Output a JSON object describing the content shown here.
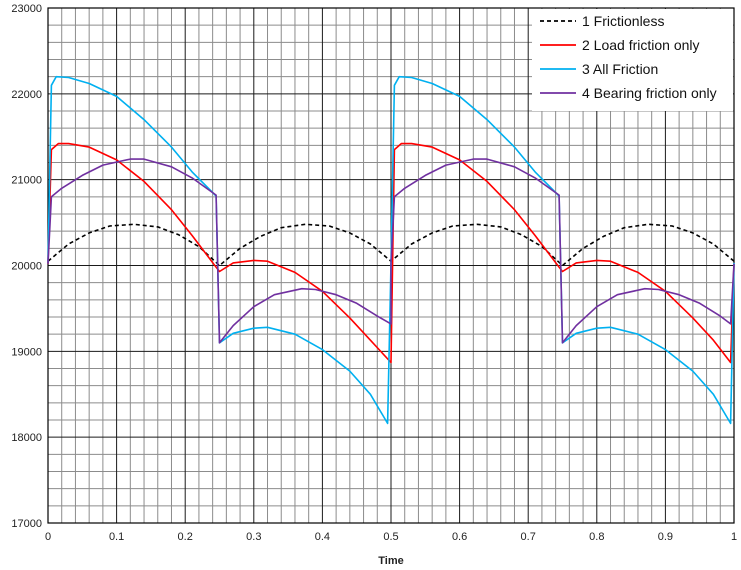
{
  "chart_data": {
    "type": "line",
    "title": "",
    "xlabel": "Time",
    "ylabel": "",
    "xlim": [
      0,
      1
    ],
    "ylim": [
      17000,
      23000
    ],
    "xticks": [
      "0",
      "0.1",
      "0.2",
      "0.3",
      "0.4",
      "0.5",
      "0.6",
      "0.7",
      "0.8",
      "0.9",
      "1"
    ],
    "yticks": [
      "17000",
      "18000",
      "19000",
      "20000",
      "21000",
      "22000",
      "23000"
    ],
    "grid": true,
    "legend_position": "top-right",
    "series": [
      {
        "name": "1 Frictionless",
        "color": "#000000",
        "dashed": true,
        "points": [
          [
            0,
            20050
          ],
          [
            0.03,
            20250
          ],
          [
            0.06,
            20380
          ],
          [
            0.09,
            20460
          ],
          [
            0.125,
            20480
          ],
          [
            0.16,
            20450
          ],
          [
            0.19,
            20360
          ],
          [
            0.22,
            20220
          ],
          [
            0.25,
            20000
          ],
          [
            0.28,
            20200
          ],
          [
            0.31,
            20340
          ],
          [
            0.34,
            20440
          ],
          [
            0.375,
            20480
          ],
          [
            0.41,
            20460
          ],
          [
            0.44,
            20380
          ],
          [
            0.47,
            20250
          ],
          [
            0.5,
            20050
          ],
          [
            0.53,
            20250
          ],
          [
            0.56,
            20380
          ],
          [
            0.59,
            20460
          ],
          [
            0.625,
            20480
          ],
          [
            0.66,
            20450
          ],
          [
            0.69,
            20360
          ],
          [
            0.72,
            20220
          ],
          [
            0.75,
            20000
          ],
          [
            0.78,
            20200
          ],
          [
            0.81,
            20340
          ],
          [
            0.84,
            20440
          ],
          [
            0.875,
            20480
          ],
          [
            0.91,
            20460
          ],
          [
            0.94,
            20380
          ],
          [
            0.97,
            20250
          ],
          [
            1.0,
            20050
          ]
        ]
      },
      {
        "name": "2 Load friction only",
        "color": "#ff0000",
        "dashed": false,
        "points": [
          [
            0,
            20020
          ],
          [
            0.005,
            21350
          ],
          [
            0.015,
            21420
          ],
          [
            0.03,
            21420
          ],
          [
            0.06,
            21380
          ],
          [
            0.1,
            21230
          ],
          [
            0.14,
            20980
          ],
          [
            0.18,
            20650
          ],
          [
            0.21,
            20350
          ],
          [
            0.245,
            19980
          ],
          [
            0.25,
            19930
          ],
          [
            0.27,
            20030
          ],
          [
            0.3,
            20060
          ],
          [
            0.32,
            20050
          ],
          [
            0.36,
            19920
          ],
          [
            0.4,
            19700
          ],
          [
            0.44,
            19390
          ],
          [
            0.47,
            19130
          ],
          [
            0.5,
            18870
          ],
          [
            0.505,
            21350
          ],
          [
            0.515,
            21420
          ],
          [
            0.53,
            21420
          ],
          [
            0.56,
            21380
          ],
          [
            0.6,
            21230
          ],
          [
            0.64,
            20980
          ],
          [
            0.68,
            20650
          ],
          [
            0.71,
            20350
          ],
          [
            0.745,
            19980
          ],
          [
            0.75,
            19930
          ],
          [
            0.77,
            20030
          ],
          [
            0.8,
            20060
          ],
          [
            0.82,
            20050
          ],
          [
            0.86,
            19920
          ],
          [
            0.9,
            19700
          ],
          [
            0.94,
            19390
          ],
          [
            0.97,
            19130
          ],
          [
            0.995,
            18870
          ],
          [
            1.0,
            20020
          ]
        ]
      },
      {
        "name": "3 All Friction",
        "color": "#00b0f0",
        "dashed": false,
        "points": [
          [
            0,
            20030
          ],
          [
            0.005,
            22100
          ],
          [
            0.012,
            22200
          ],
          [
            0.03,
            22190
          ],
          [
            0.06,
            22120
          ],
          [
            0.1,
            21970
          ],
          [
            0.14,
            21700
          ],
          [
            0.18,
            21380
          ],
          [
            0.21,
            21090
          ],
          [
            0.245,
            20810
          ],
          [
            0.25,
            19100
          ],
          [
            0.27,
            19210
          ],
          [
            0.3,
            19270
          ],
          [
            0.32,
            19280
          ],
          [
            0.36,
            19200
          ],
          [
            0.4,
            19020
          ],
          [
            0.44,
            18770
          ],
          [
            0.47,
            18500
          ],
          [
            0.495,
            18160
          ],
          [
            0.5,
            20030
          ],
          [
            0.505,
            22100
          ],
          [
            0.512,
            22200
          ],
          [
            0.53,
            22190
          ],
          [
            0.56,
            22120
          ],
          [
            0.6,
            21970
          ],
          [
            0.64,
            21700
          ],
          [
            0.68,
            21380
          ],
          [
            0.71,
            21090
          ],
          [
            0.745,
            20810
          ],
          [
            0.75,
            19100
          ],
          [
            0.77,
            19210
          ],
          [
            0.8,
            19270
          ],
          [
            0.82,
            19280
          ],
          [
            0.86,
            19200
          ],
          [
            0.9,
            19020
          ],
          [
            0.94,
            18770
          ],
          [
            0.97,
            18500
          ],
          [
            0.995,
            18160
          ],
          [
            1.0,
            20030
          ]
        ]
      },
      {
        "name": "4 Bearing friction only",
        "color": "#7030a0",
        "dashed": false,
        "points": [
          [
            0,
            20020
          ],
          [
            0.005,
            20800
          ],
          [
            0.02,
            20900
          ],
          [
            0.05,
            21050
          ],
          [
            0.08,
            21170
          ],
          [
            0.12,
            21240
          ],
          [
            0.14,
            21240
          ],
          [
            0.18,
            21150
          ],
          [
            0.21,
            21020
          ],
          [
            0.245,
            20820
          ],
          [
            0.25,
            19100
          ],
          [
            0.27,
            19300
          ],
          [
            0.3,
            19520
          ],
          [
            0.33,
            19660
          ],
          [
            0.37,
            19730
          ],
          [
            0.39,
            19720
          ],
          [
            0.42,
            19660
          ],
          [
            0.45,
            19560
          ],
          [
            0.48,
            19410
          ],
          [
            0.5,
            19320
          ],
          [
            0.5,
            20020
          ],
          [
            0.505,
            20800
          ],
          [
            0.52,
            20900
          ],
          [
            0.55,
            21050
          ],
          [
            0.58,
            21170
          ],
          [
            0.62,
            21240
          ],
          [
            0.64,
            21240
          ],
          [
            0.68,
            21150
          ],
          [
            0.71,
            21020
          ],
          [
            0.745,
            20820
          ],
          [
            0.75,
            19100
          ],
          [
            0.77,
            19300
          ],
          [
            0.8,
            19520
          ],
          [
            0.83,
            19660
          ],
          [
            0.87,
            19730
          ],
          [
            0.89,
            19720
          ],
          [
            0.92,
            19660
          ],
          [
            0.95,
            19560
          ],
          [
            0.98,
            19410
          ],
          [
            0.995,
            19320
          ],
          [
            1.0,
            20020
          ]
        ]
      }
    ]
  }
}
